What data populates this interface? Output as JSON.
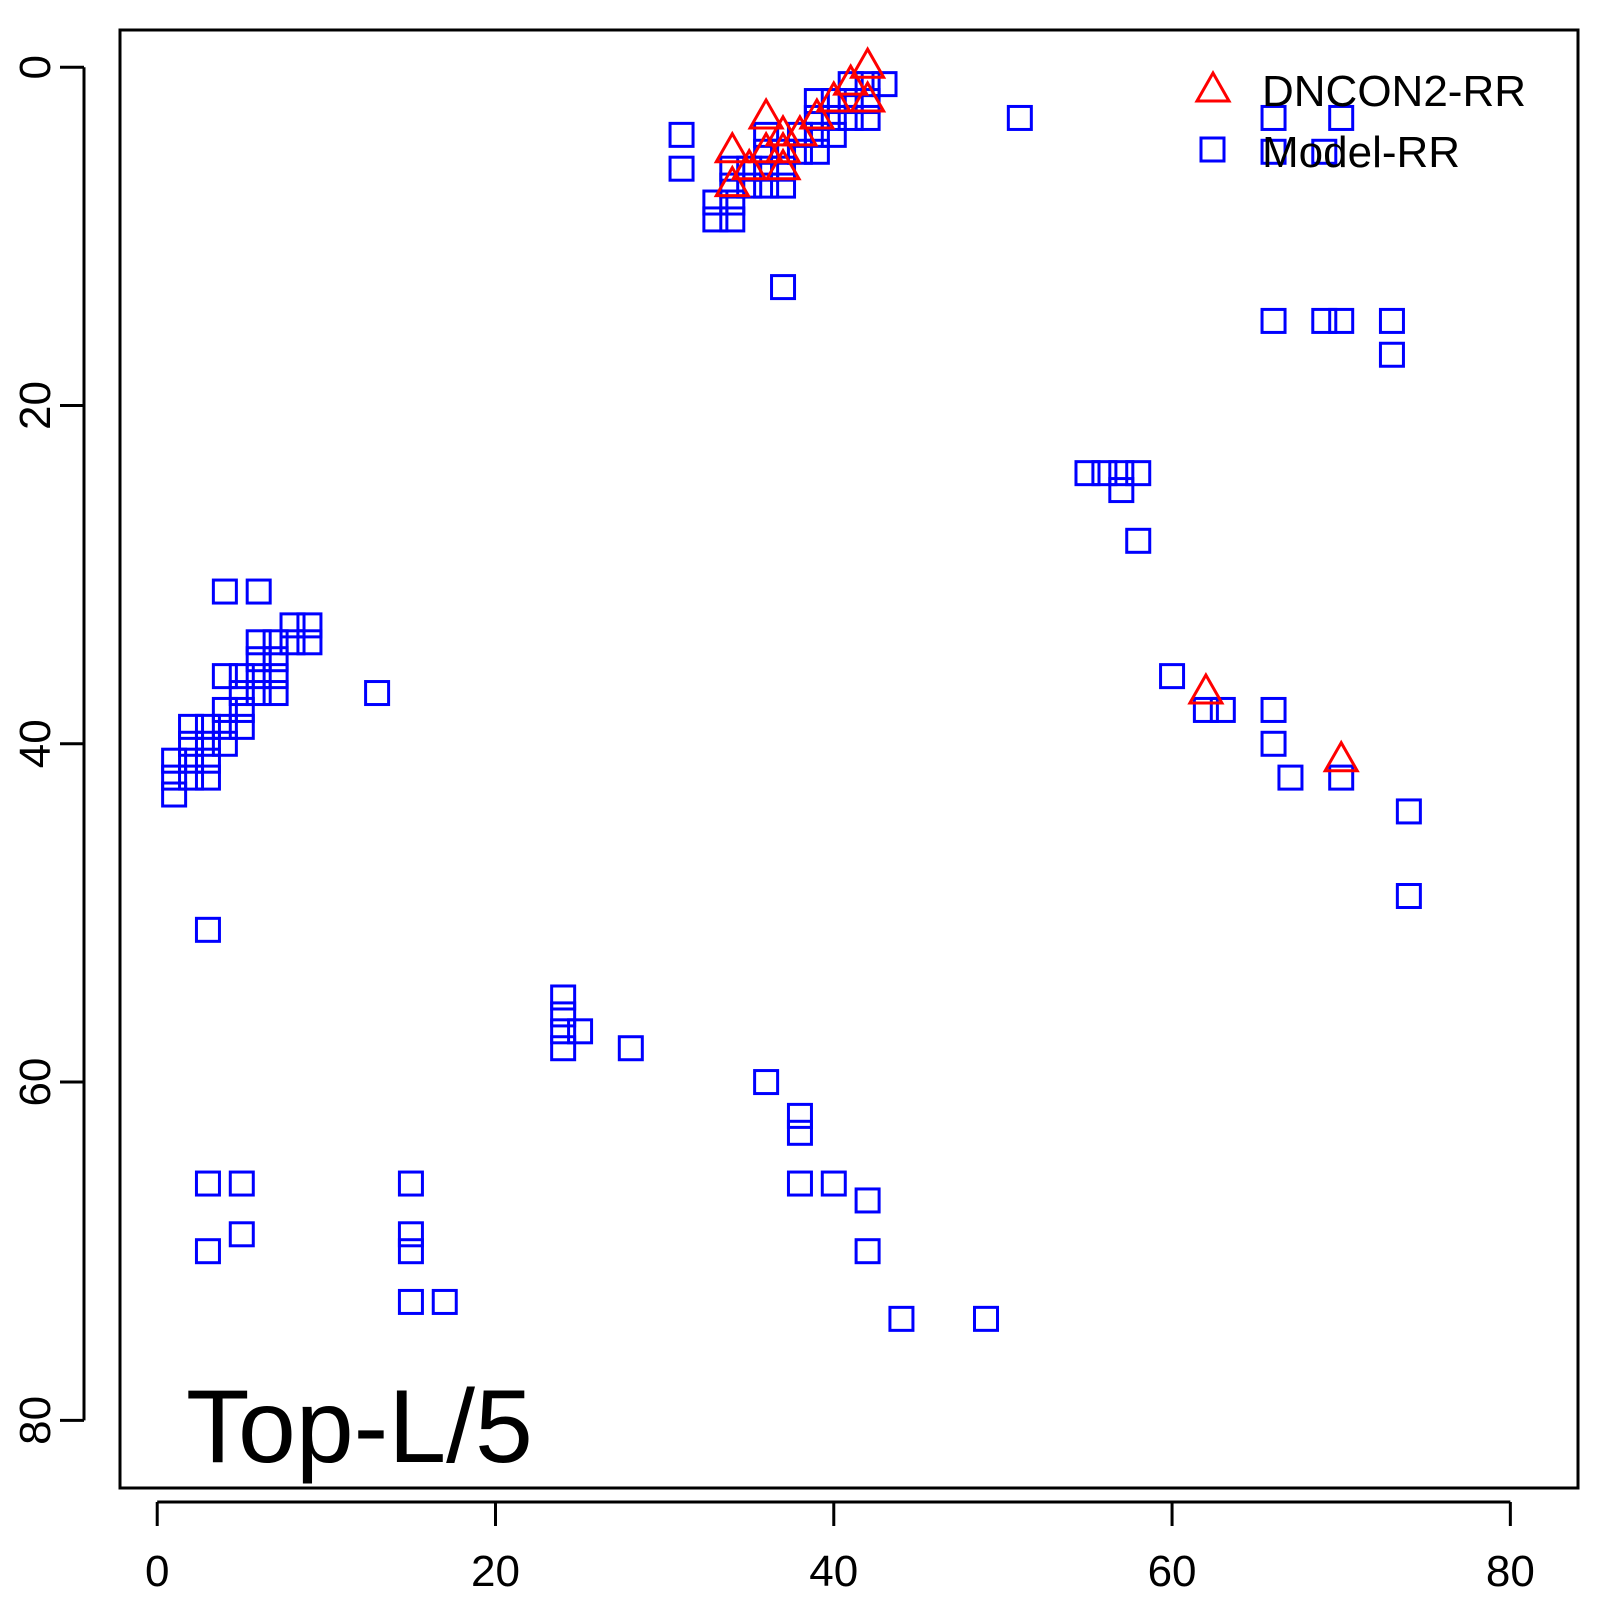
{
  "chart_data": {
    "type": "scatter",
    "title": "",
    "xlabel": "",
    "ylabel": "",
    "xlim": [
      -2.2,
      84
    ],
    "ylim": [
      -2.2,
      84
    ],
    "y_axis_inverted": true,
    "x_ticks": [
      "0",
      "20",
      "40",
      "60",
      "80"
    ],
    "y_ticks": [
      "0",
      "20",
      "40",
      "60",
      "80"
    ],
    "grid": false,
    "legend_position": "top-right",
    "annotation": "Top-L/5",
    "series": [
      {
        "name": "DNCON2-RR",
        "marker": "triangle",
        "color": "#ff0000",
        "points": [
          [
            42,
            0
          ],
          [
            41,
            1
          ],
          [
            42,
            2
          ],
          [
            40,
            2
          ],
          [
            39,
            3
          ],
          [
            36,
            3
          ],
          [
            37,
            4
          ],
          [
            38,
            4
          ],
          [
            36,
            5
          ],
          [
            37,
            5
          ],
          [
            34,
            5
          ],
          [
            35,
            6
          ],
          [
            37,
            6
          ],
          [
            34,
            7
          ],
          [
            62,
            37
          ],
          [
            70,
            41
          ]
        ]
      },
      {
        "name": "Model-RR",
        "marker": "square",
        "color": "#0000ff",
        "points": [
          [
            41,
            1
          ],
          [
            42,
            1
          ],
          [
            43,
            1
          ],
          [
            39,
            2
          ],
          [
            40,
            2
          ],
          [
            41,
            2
          ],
          [
            42,
            2
          ],
          [
            39,
            3
          ],
          [
            40,
            3
          ],
          [
            41,
            3
          ],
          [
            42,
            3
          ],
          [
            51,
            3
          ],
          [
            66,
            3
          ],
          [
            70,
            3
          ],
          [
            31,
            4
          ],
          [
            36,
            4
          ],
          [
            38,
            4
          ],
          [
            39,
            4
          ],
          [
            40,
            4
          ],
          [
            36,
            5
          ],
          [
            37,
            5
          ],
          [
            38,
            5
          ],
          [
            39,
            5
          ],
          [
            66,
            5
          ],
          [
            69,
            5
          ],
          [
            31,
            6
          ],
          [
            34,
            6
          ],
          [
            35,
            6
          ],
          [
            36,
            6
          ],
          [
            37,
            6
          ],
          [
            34,
            7
          ],
          [
            35,
            7
          ],
          [
            36,
            7
          ],
          [
            37,
            7
          ],
          [
            33,
            8
          ],
          [
            34,
            8
          ],
          [
            33,
            9
          ],
          [
            34,
            9
          ],
          [
            37,
            13
          ],
          [
            66,
            15
          ],
          [
            69,
            15
          ],
          [
            70,
            15
          ],
          [
            73,
            15
          ],
          [
            73,
            17
          ],
          [
            55,
            24
          ],
          [
            56,
            24
          ],
          [
            57,
            24
          ],
          [
            58,
            24
          ],
          [
            57,
            25
          ],
          [
            58,
            28
          ],
          [
            4,
            31
          ],
          [
            6,
            31
          ],
          [
            8,
            33
          ],
          [
            9,
            33
          ],
          [
            8,
            34
          ],
          [
            9,
            34
          ],
          [
            6,
            34
          ],
          [
            7,
            34
          ],
          [
            6,
            35
          ],
          [
            7,
            35
          ],
          [
            4,
            36
          ],
          [
            5,
            36
          ],
          [
            6,
            36
          ],
          [
            7,
            36
          ],
          [
            60,
            36
          ],
          [
            5,
            37
          ],
          [
            6,
            37
          ],
          [
            7,
            37
          ],
          [
            13,
            37
          ],
          [
            4,
            38
          ],
          [
            5,
            38
          ],
          [
            62,
            38
          ],
          [
            63,
            38
          ],
          [
            66,
            38
          ],
          [
            2,
            39
          ],
          [
            3,
            39
          ],
          [
            4,
            39
          ],
          [
            5,
            39
          ],
          [
            2,
            40
          ],
          [
            3,
            40
          ],
          [
            4,
            40
          ],
          [
            66,
            40
          ],
          [
            1,
            41
          ],
          [
            2,
            41
          ],
          [
            3,
            41
          ],
          [
            1,
            42
          ],
          [
            2,
            42
          ],
          [
            3,
            42
          ],
          [
            67,
            42
          ],
          [
            70,
            42
          ],
          [
            1,
            43
          ],
          [
            74,
            44
          ],
          [
            74,
            49
          ],
          [
            3,
            51
          ],
          [
            24,
            55
          ],
          [
            24,
            56
          ],
          [
            24,
            57
          ],
          [
            25,
            57
          ],
          [
            24,
            58
          ],
          [
            28,
            58
          ],
          [
            36,
            60
          ],
          [
            38,
            62
          ],
          [
            38,
            63
          ],
          [
            3,
            66
          ],
          [
            5,
            66
          ],
          [
            15,
            66
          ],
          [
            38,
            66
          ],
          [
            40,
            66
          ],
          [
            42,
            67
          ],
          [
            5,
            69
          ],
          [
            15,
            69
          ],
          [
            3,
            70
          ],
          [
            15,
            70
          ],
          [
            42,
            70
          ],
          [
            15,
            73
          ],
          [
            17,
            73
          ],
          [
            44,
            74
          ],
          [
            49,
            74
          ]
        ]
      }
    ]
  }
}
